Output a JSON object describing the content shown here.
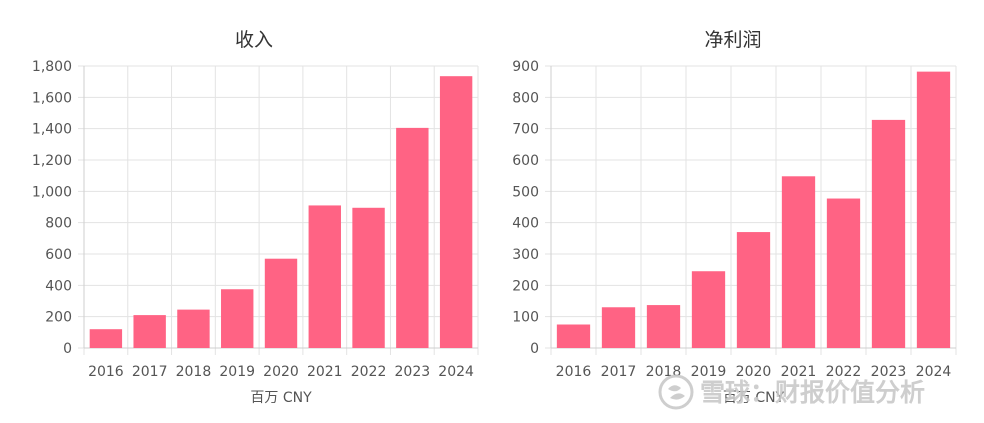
{
  "colors": {
    "bar": "#FF6384"
  },
  "chart_data": [
    {
      "type": "bar",
      "title": "收入",
      "categories": [
        "2016",
        "2017",
        "2018",
        "2019",
        "2020",
        "2021",
        "2022",
        "2023",
        "2024"
      ],
      "values": [
        120,
        210,
        245,
        375,
        570,
        910,
        895,
        1405,
        1735
      ],
      "ylim": [
        0,
        1800
      ],
      "yticks": [
        0,
        200,
        400,
        600,
        800,
        1000,
        1200,
        1400,
        1600,
        1800
      ],
      "xlabel": "百万 CNY",
      "ylabel": "",
      "grid": true
    },
    {
      "type": "bar",
      "title": "净利润",
      "categories": [
        "2016",
        "2017",
        "2018",
        "2019",
        "2020",
        "2021",
        "2022",
        "2023",
        "2024"
      ],
      "values": [
        75,
        130,
        137,
        245,
        370,
        548,
        477,
        728,
        882
      ],
      "ylim": [
        0,
        900
      ],
      "yticks": [
        0,
        100,
        200,
        300,
        400,
        500,
        600,
        700,
        800,
        900
      ],
      "xlabel": "百万 CNY",
      "ylabel": "",
      "grid": true
    }
  ],
  "watermark": {
    "text": "雪球：财报价值分析"
  }
}
